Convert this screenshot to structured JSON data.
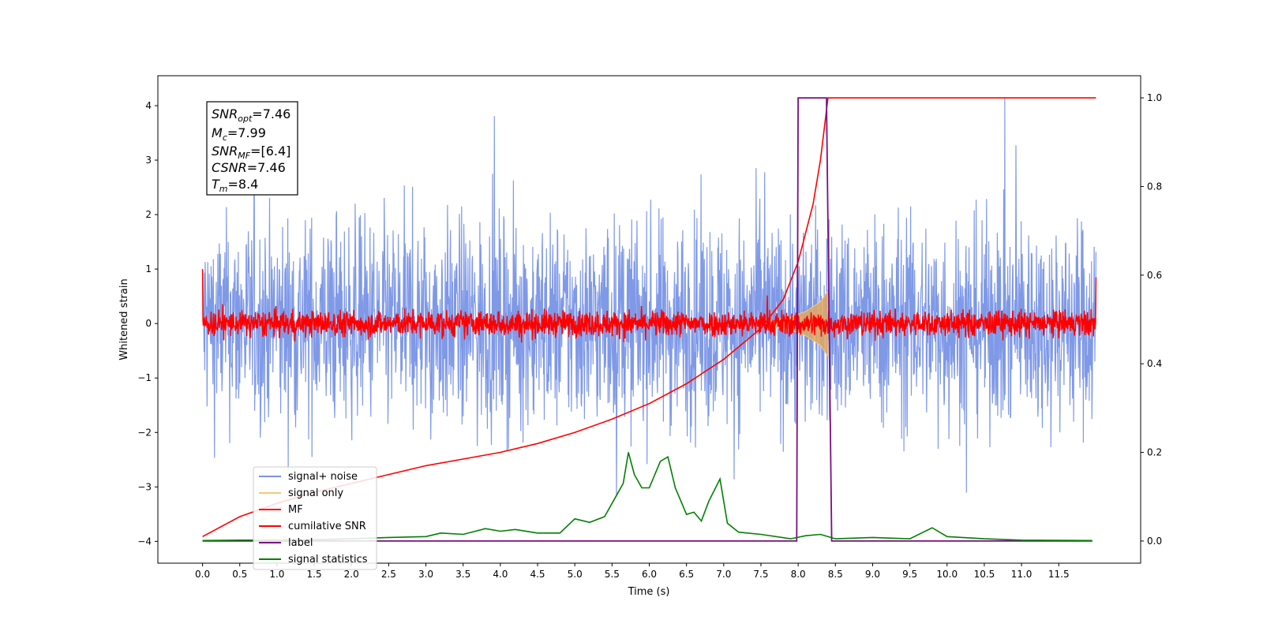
{
  "chart_data": {
    "type": "line",
    "xlabel": "Time (s)",
    "ylabel": "Whitened strain",
    "xlim": [
      -0.6,
      12.6
    ],
    "ylim_left": [
      -4.4,
      4.55
    ],
    "ylim_right": [
      -0.05,
      1.05
    ],
    "x_ticks": [
      "0.0",
      "0.5",
      "1.0",
      "1.5",
      "2.0",
      "2.5",
      "3.0",
      "3.5",
      "4.0",
      "4.5",
      "5.0",
      "5.5",
      "6.0",
      "6.5",
      "7.0",
      "7.5",
      "8.0",
      "8.5",
      "9.0",
      "9.5",
      "10.0",
      "10.5",
      "11.0",
      "11.5"
    ],
    "y_ticks_left": [
      "−4",
      "−3",
      "−2",
      "−1",
      "0",
      "1",
      "2",
      "3",
      "4"
    ],
    "y_ticks_right": [
      "0.0",
      "0.2",
      "0.4",
      "0.6",
      "0.8",
      "1.0"
    ],
    "legend_position": "lower-left",
    "legend": [
      "signal+ noise",
      "signal only",
      "MF",
      "cumilative SNR",
      "label",
      "signal statistics"
    ],
    "annotation": {
      "snr_opt": "=7.46",
      "mc": "=7.99",
      "snr_mf": "=[6.4]",
      "csnr": "=7.46",
      "tm": "=8.4"
    },
    "series": [
      {
        "name": "signal+ noise",
        "axis": "left",
        "color": "#7894e6",
        "description": "whitened noisy strain from 0.0 to 12.0 s",
        "t_range": [
          0.0,
          12.0
        ],
        "approx_range": [
          -3.6,
          4.1
        ]
      },
      {
        "name": "signal only",
        "axis": "left",
        "color": "#f5c878",
        "description": "chirp signal growing from 7.6 s to merger at 8.4 s",
        "points": [
          [
            7.6,
            0.05
          ],
          [
            7.9,
            0.12
          ],
          [
            8.1,
            0.22
          ],
          [
            8.3,
            0.4
          ],
          [
            8.4,
            0.6
          ]
        ]
      },
      {
        "name": "MF",
        "axis": "left",
        "color": "#ff0000",
        "description": "matched filter output, mostly within about ±0.4",
        "t_range": [
          0.0,
          12.0
        ],
        "approx_range": [
          -0.4,
          1.0
        ]
      },
      {
        "name": "cumilative SNR",
        "axis": "right",
        "color": "#ff0000",
        "points": [
          [
            0.0,
            0.01
          ],
          [
            0.5,
            0.055
          ],
          [
            1.0,
            0.085
          ],
          [
            1.5,
            0.11
          ],
          [
            2.0,
            0.13
          ],
          [
            2.5,
            0.15
          ],
          [
            3.0,
            0.17
          ],
          [
            3.5,
            0.185
          ],
          [
            4.0,
            0.2
          ],
          [
            4.5,
            0.22
          ],
          [
            5.0,
            0.245
          ],
          [
            5.5,
            0.275
          ],
          [
            6.0,
            0.31
          ],
          [
            6.5,
            0.355
          ],
          [
            7.0,
            0.41
          ],
          [
            7.5,
            0.48
          ],
          [
            7.8,
            0.545
          ],
          [
            8.0,
            0.63
          ],
          [
            8.2,
            0.76
          ],
          [
            8.3,
            0.86
          ],
          [
            8.4,
            1.0
          ],
          [
            12.0,
            1.0
          ]
        ]
      },
      {
        "name": "label",
        "axis": "right",
        "color": "#7b0f80",
        "points": [
          [
            0.0,
            0.0
          ],
          [
            7.98,
            0.0
          ],
          [
            8.0,
            1.0
          ],
          [
            8.38,
            1.0
          ],
          [
            8.45,
            0.0
          ],
          [
            11.95,
            0.0
          ]
        ]
      },
      {
        "name": "signal statistics",
        "axis": "right",
        "color": "#008000",
        "points": [
          [
            0.0,
            0.001
          ],
          [
            0.5,
            0.002
          ],
          [
            1.0,
            0.002
          ],
          [
            1.5,
            0.003
          ],
          [
            2.0,
            0.005
          ],
          [
            2.5,
            0.008
          ],
          [
            3.0,
            0.01
          ],
          [
            3.2,
            0.018
          ],
          [
            3.5,
            0.015
          ],
          [
            3.8,
            0.028
          ],
          [
            4.0,
            0.022
          ],
          [
            4.2,
            0.026
          ],
          [
            4.5,
            0.018
          ],
          [
            4.8,
            0.018
          ],
          [
            5.0,
            0.05
          ],
          [
            5.2,
            0.042
          ],
          [
            5.4,
            0.055
          ],
          [
            5.55,
            0.1
          ],
          [
            5.65,
            0.13
          ],
          [
            5.72,
            0.2
          ],
          [
            5.8,
            0.15
          ],
          [
            5.9,
            0.12
          ],
          [
            6.0,
            0.12
          ],
          [
            6.15,
            0.18
          ],
          [
            6.25,
            0.19
          ],
          [
            6.35,
            0.12
          ],
          [
            6.5,
            0.06
          ],
          [
            6.6,
            0.065
          ],
          [
            6.7,
            0.045
          ],
          [
            6.8,
            0.09
          ],
          [
            6.95,
            0.14
          ],
          [
            7.05,
            0.04
          ],
          [
            7.2,
            0.02
          ],
          [
            7.5,
            0.015
          ],
          [
            7.9,
            0.005
          ],
          [
            8.1,
            0.012
          ],
          [
            8.3,
            0.015
          ],
          [
            8.5,
            0.005
          ],
          [
            9.0,
            0.008
          ],
          [
            9.5,
            0.005
          ],
          [
            9.8,
            0.03
          ],
          [
            10.0,
            0.01
          ],
          [
            10.5,
            0.005
          ],
          [
            11.0,
            0.002
          ],
          [
            11.95,
            0.001
          ]
        ]
      }
    ]
  }
}
